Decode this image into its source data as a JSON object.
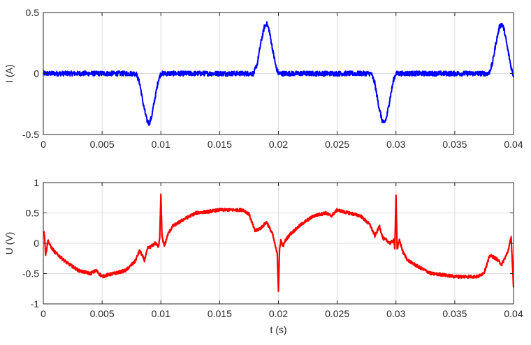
{
  "chart_data": [
    {
      "type": "line",
      "ylabel": "I (A)",
      "xlabel": "",
      "xlim": [
        0,
        0.04
      ],
      "ylim": [
        -0.5,
        0.5
      ],
      "grid": true,
      "xticks": [
        0,
        0.005,
        0.01,
        0.015,
        0.02,
        0.025,
        0.03,
        0.035,
        0.04
      ],
      "xtick_labels": [
        "0",
        "0.005",
        "0.01",
        "0.015",
        "0.02",
        "0.025",
        "0.03",
        "0.035",
        "0.04"
      ],
      "yticks": [
        -0.5,
        0,
        0.5
      ],
      "ytick_labels": [
        "-0.5",
        "0",
        "0.5"
      ],
      "series": [
        {
          "color": "#0000ff",
          "x": [
            0,
            0.001,
            0.002,
            0.003,
            0.004,
            0.005,
            0.006,
            0.007,
            0.0079,
            0.0082,
            0.0085,
            0.0088,
            0.009,
            0.0092,
            0.0095,
            0.0098,
            0.01,
            0.011,
            0.012,
            0.013,
            0.014,
            0.015,
            0.016,
            0.017,
            0.0179,
            0.0182,
            0.0185,
            0.0188,
            0.019,
            0.0192,
            0.0195,
            0.0198,
            0.02,
            0.021,
            0.022,
            0.023,
            0.024,
            0.025,
            0.026,
            0.027,
            0.0279,
            0.0282,
            0.0285,
            0.0288,
            0.029,
            0.0292,
            0.0295,
            0.0298,
            0.03,
            0.031,
            0.032,
            0.033,
            0.034,
            0.035,
            0.036,
            0.037,
            0.0379,
            0.0382,
            0.0385,
            0.0388,
            0.039,
            0.0392,
            0.0395,
            0.0398,
            0.04
          ],
          "y": [
            0,
            0,
            0,
            0,
            0,
            0,
            0,
            0,
            0,
            -0.08,
            -0.25,
            -0.38,
            -0.41,
            -0.36,
            -0.2,
            -0.05,
            0,
            0,
            0,
            0,
            0,
            0,
            0,
            0,
            0,
            0.08,
            0.25,
            0.38,
            0.41,
            0.36,
            0.2,
            0.05,
            0,
            0,
            0,
            0,
            0,
            0,
            0,
            0,
            0,
            -0.08,
            -0.25,
            -0.38,
            -0.41,
            -0.36,
            -0.2,
            -0.05,
            0,
            0,
            0,
            0,
            0,
            0,
            0,
            0,
            0,
            0.08,
            0.25,
            0.38,
            0.41,
            0.36,
            0.2,
            0.05,
            -0.02
          ],
          "noise_amplitude": 0.02
        }
      ]
    },
    {
      "type": "line",
      "ylabel": "U (V)",
      "xlabel": "t (s)",
      "xlim": [
        0,
        0.04
      ],
      "ylim": [
        -1,
        1
      ],
      "grid": true,
      "xticks": [
        0,
        0.005,
        0.01,
        0.015,
        0.02,
        0.025,
        0.03,
        0.035,
        0.04
      ],
      "xtick_labels": [
        "0",
        "0.005",
        "0.01",
        "0.015",
        "0.02",
        "0.025",
        "0.03",
        "0.035",
        "0.04"
      ],
      "yticks": [
        -1,
        -0.5,
        0,
        0.5,
        1
      ],
      "ytick_labels": [
        "-1",
        "-0.5",
        "0",
        "0.5",
        "1"
      ],
      "series": [
        {
          "color": "#ff0000",
          "x": [
            0,
            0.0001,
            0.0002,
            0.0004,
            0.0006,
            0.001,
            0.002,
            0.003,
            0.004,
            0.0045,
            0.005,
            0.0055,
            0.006,
            0.007,
            0.0078,
            0.0082,
            0.0086,
            0.0089,
            0.0092,
            0.0095,
            0.0098,
            0.0099,
            0.01,
            0.0101,
            0.0103,
            0.0106,
            0.011,
            0.012,
            0.013,
            0.014,
            0.015,
            0.016,
            0.017,
            0.0175,
            0.018,
            0.0185,
            0.019,
            0.0195,
            0.0198,
            0.0199,
            0.02,
            0.0201,
            0.0202,
            0.0204,
            0.0206,
            0.021,
            0.022,
            0.023,
            0.024,
            0.0245,
            0.025,
            0.0255,
            0.026,
            0.027,
            0.0278,
            0.0282,
            0.0286,
            0.0289,
            0.0292,
            0.0295,
            0.0298,
            0.0299,
            0.03,
            0.0301,
            0.0303,
            0.0306,
            0.031,
            0.032,
            0.033,
            0.034,
            0.035,
            0.036,
            0.037,
            0.0375,
            0.038,
            0.0385,
            0.039,
            0.0395,
            0.0398,
            0.04
          ],
          "y": [
            0.2,
            0.15,
            -0.2,
            0.05,
            -0.05,
            -0.15,
            -0.32,
            -0.45,
            -0.5,
            -0.45,
            -0.55,
            -0.52,
            -0.5,
            -0.45,
            -0.3,
            -0.12,
            -0.28,
            -0.08,
            -0.05,
            0,
            -0.05,
            0.1,
            0.8,
            0.1,
            -0.05,
            0.15,
            0.28,
            0.4,
            0.5,
            0.52,
            0.55,
            0.55,
            0.55,
            0.48,
            0.2,
            0.25,
            0.35,
            0.15,
            -0.1,
            -0.15,
            -0.78,
            -0.1,
            0.05,
            -0.05,
            0.05,
            0.15,
            0.32,
            0.45,
            0.5,
            0.45,
            0.55,
            0.52,
            0.5,
            0.45,
            0.3,
            0.12,
            0.28,
            0.08,
            0.05,
            0,
            0.05,
            -0.1,
            0.78,
            -0.1,
            0.05,
            -0.15,
            -0.28,
            -0.4,
            -0.5,
            -0.52,
            -0.55,
            -0.55,
            -0.55,
            -0.48,
            -0.2,
            -0.25,
            -0.35,
            -0.15,
            0.1,
            -0.75
          ],
          "noise_amplitude": 0.025
        }
      ]
    }
  ]
}
